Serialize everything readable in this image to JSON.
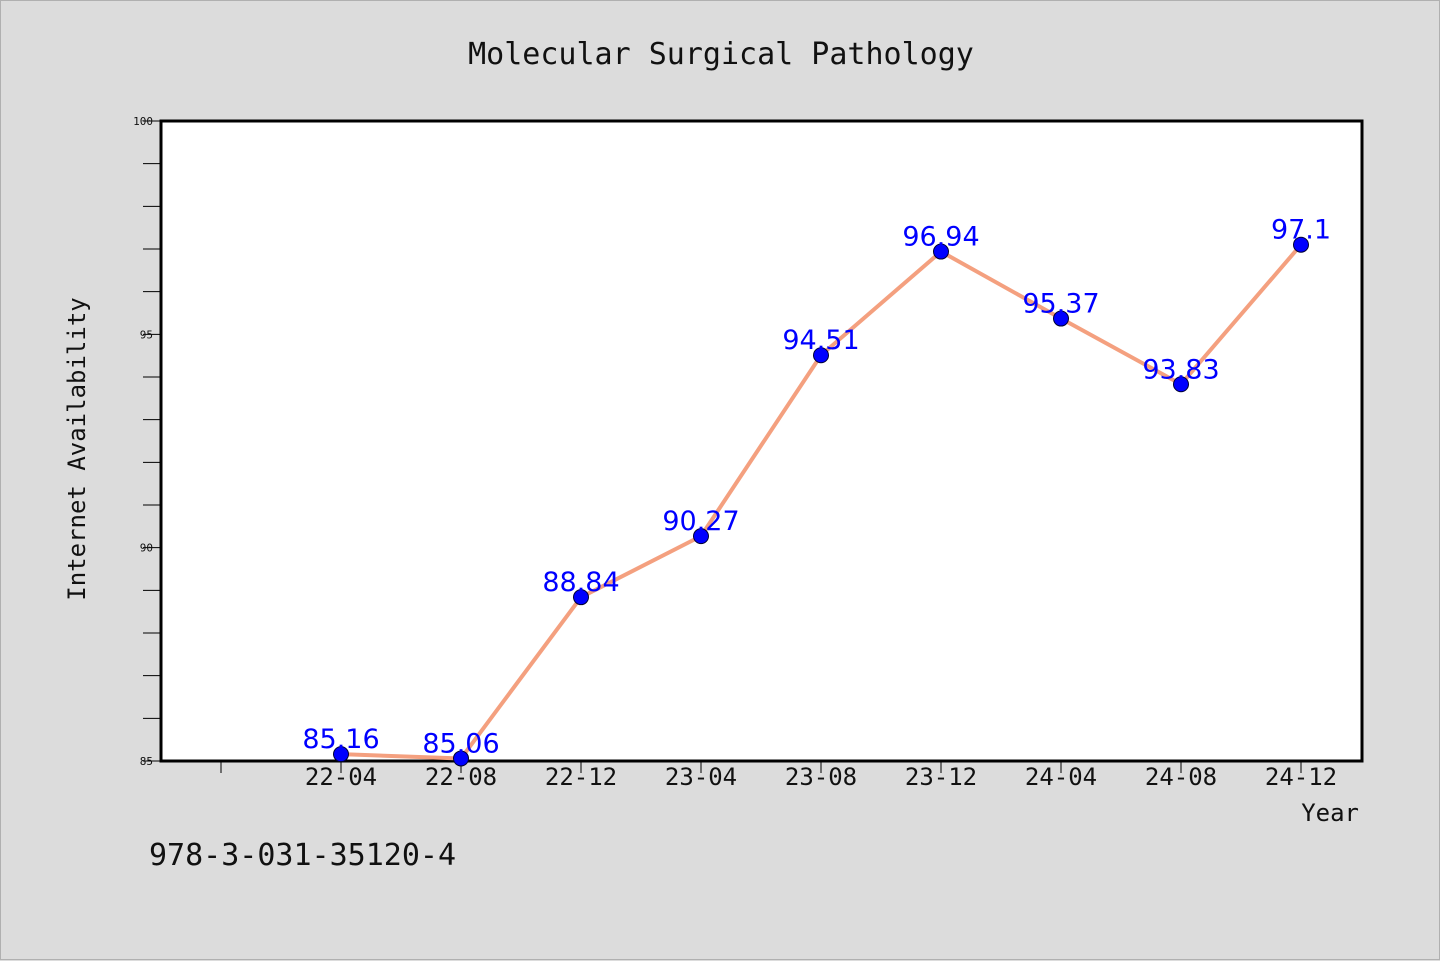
{
  "chart_data": {
    "type": "line",
    "title": "Molecular Surgical Pathology",
    "xlabel": "Year",
    "ylabel": "Internet Availability",
    "categories": [
      "22-04",
      "22-08",
      "22-12",
      "23-04",
      "23-08",
      "23-12",
      "24-04",
      "24-08",
      "24-12"
    ],
    "values": [
      85.16,
      85.06,
      88.84,
      90.27,
      94.51,
      96.94,
      95.37,
      93.83,
      97.1
    ],
    "value_labels": [
      "85.16",
      "85.06",
      "88.84",
      "90.27",
      "94.51",
      "96.94",
      "95.37",
      "93.83",
      "97.1"
    ],
    "ylim": [
      85,
      100
    ],
    "y_ticks": [
      "85",
      "90",
      "95",
      "100"
    ],
    "grid": false,
    "colors": {
      "line": "#f4a07f",
      "marker": "#0000ff",
      "data_label": "#0000ff",
      "background": "#dcdcdc",
      "plot_background": "#ffffff"
    }
  },
  "footer": {
    "isbn": "978-3-031-35120-4"
  }
}
